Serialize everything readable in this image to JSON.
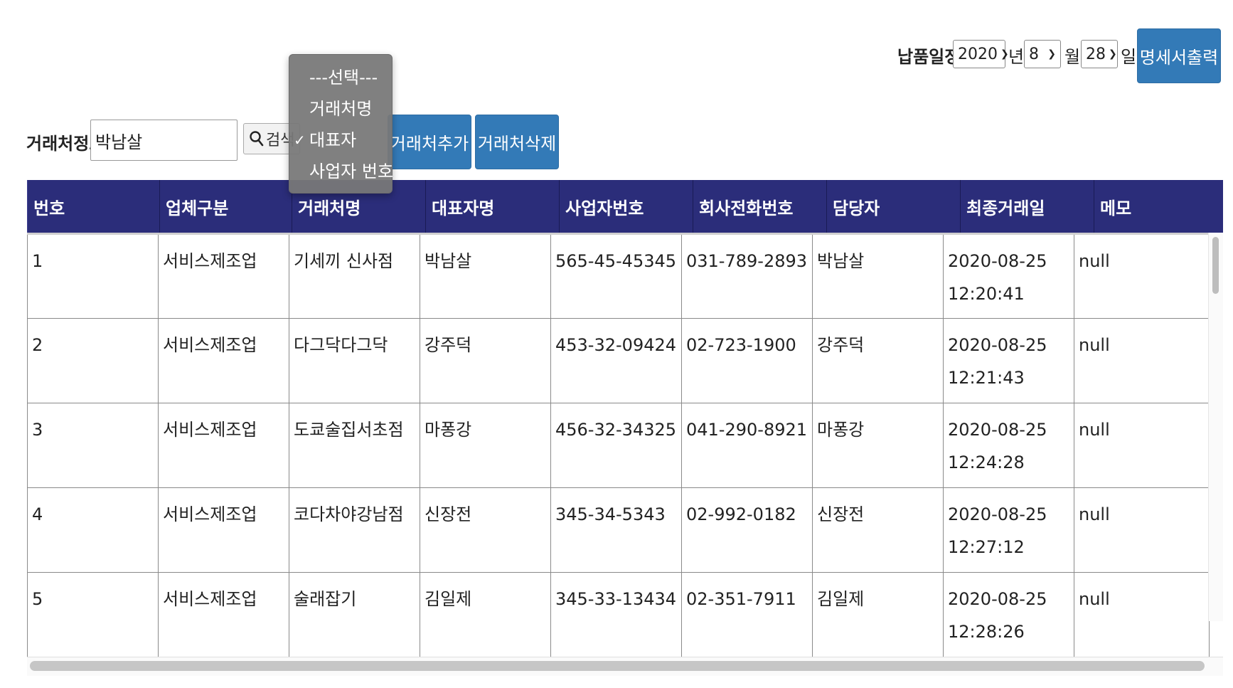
{
  "delivery": {
    "label": "납품일정:",
    "year": "2020",
    "year_unit": "년",
    "month": "8",
    "month_unit": "월",
    "day": "28",
    "day_unit": "일",
    "print_label": "명세서출력"
  },
  "search": {
    "label": "거래처정보",
    "value": "박남살",
    "button_label": "검색",
    "add_label": "거래처추가",
    "delete_label": "거래처삭제"
  },
  "dropdown": {
    "items": [
      {
        "label": "---선택---",
        "checked": false
      },
      {
        "label": "거래처명",
        "checked": false
      },
      {
        "label": "대표자",
        "checked": true
      },
      {
        "label": "사업자 번호",
        "checked": false
      }
    ],
    "check_glyph": "✓"
  },
  "table": {
    "headers": [
      "번호",
      "업체구분",
      "거래처명",
      "대표자명",
      "사업자번호",
      "회사전화번호",
      "담당자",
      "최종거래일",
      "메모"
    ],
    "rows": [
      [
        "1",
        "서비스제조업",
        "기세끼 신사점",
        "박남살",
        "565-45-45345",
        "031-789-2893",
        "박남살",
        "2020-08-25 12:20:41",
        "null"
      ],
      [
        "2",
        "서비스제조업",
        "다그닥다그닥",
        "강주덕",
        "453-32-09424",
        "02-723-1900",
        "강주덕",
        "2020-08-25 12:21:43",
        "null"
      ],
      [
        "3",
        "서비스제조업",
        "도쿄술집서초점",
        "마퐁강",
        "456-32-34325",
        "041-290-8921",
        "마퐁강",
        "2020-08-25 12:24:28",
        "null"
      ],
      [
        "4",
        "서비스제조업",
        "코다차야강남점",
        "신장전",
        "345-34-5343",
        "02-992-0182",
        "신장전",
        "2020-08-25 12:27:12",
        "null"
      ],
      [
        "5",
        "서비스제조업",
        "술래잡기",
        "김일제",
        "345-33-13434",
        "02-351-7911",
        "김일제",
        "2020-08-25 12:28:26",
        "null"
      ]
    ]
  },
  "colors": {
    "header_bg": "#2b2d7a",
    "button_bg": "#337ab7"
  }
}
